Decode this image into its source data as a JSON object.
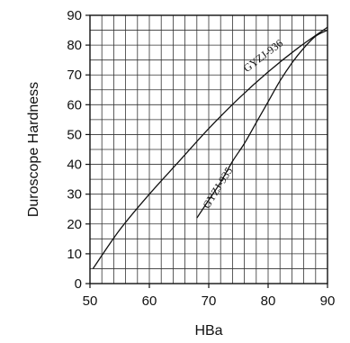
{
  "chart_data": {
    "type": "line",
    "xlabel": "HBa",
    "ylabel": "Duroscope Hardness",
    "xlim": [
      50,
      90
    ],
    "ylim": [
      0,
      90
    ],
    "x_ticks": [
      50,
      60,
      70,
      80,
      90
    ],
    "y_ticks": [
      0,
      10,
      20,
      30,
      40,
      50,
      60,
      70,
      80,
      90
    ],
    "grid": true,
    "series": [
      {
        "name": "GYZJ-936",
        "x": [
          50.5,
          55,
          60,
          65,
          70,
          75,
          80,
          85,
          90
        ],
        "y": [
          5,
          18,
          30,
          41,
          52,
          62,
          71,
          79,
          86
        ]
      },
      {
        "name": "GYZJ-935",
        "x": [
          68,
          70,
          72,
          74,
          76,
          78,
          80,
          82,
          84,
          86,
          88,
          90
        ],
        "y": [
          22,
          28,
          34,
          41,
          47,
          54,
          61,
          68,
          74,
          79,
          83,
          85
        ]
      }
    ]
  }
}
